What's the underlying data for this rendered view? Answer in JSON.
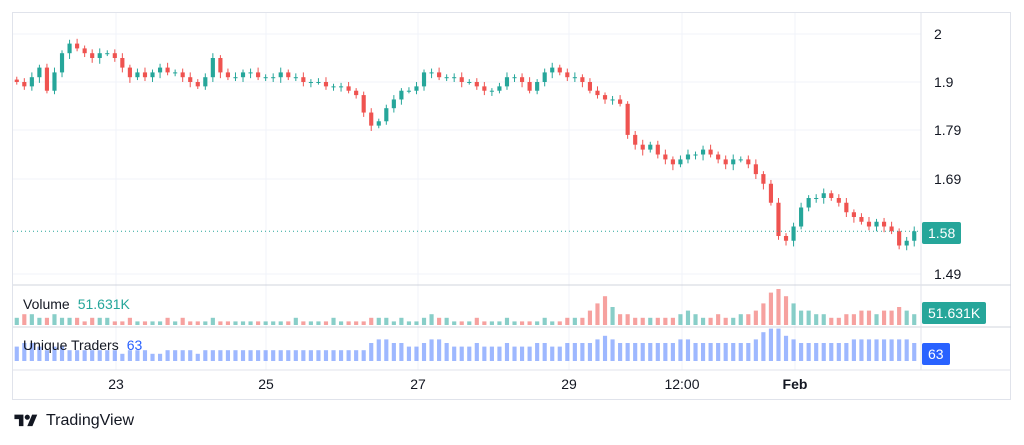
{
  "chart_data": [
    {
      "type": "candlestick",
      "title": "",
      "y_ticks": [
        "2",
        "1.9",
        "1.79",
        "1.69",
        "1.49"
      ],
      "x_ticks": [
        "23",
        "25",
        "27",
        "29",
        "12:00",
        "Feb"
      ],
      "last_price": "1.58",
      "ylim": [
        1.45,
        2.02
      ],
      "colors": {
        "up": "#26a69a",
        "down": "#ef5350",
        "last": "#26a69a"
      },
      "series_close": [
        1.9,
        1.89,
        1.91,
        1.93,
        1.88,
        1.92,
        1.96,
        1.98,
        1.97,
        1.96,
        1.95,
        1.96,
        1.96,
        1.95,
        1.93,
        1.91,
        1.92,
        1.91,
        1.92,
        1.93,
        1.92,
        1.92,
        1.91,
        1.9,
        1.89,
        1.91,
        1.95,
        1.92,
        1.91,
        1.91,
        1.92,
        1.92,
        1.91,
        1.91,
        1.91,
        1.92,
        1.91,
        1.91,
        1.9,
        1.9,
        1.9,
        1.89,
        1.89,
        1.89,
        1.88,
        1.87,
        1.83,
        1.8,
        1.81,
        1.84,
        1.86,
        1.88,
        1.88,
        1.89,
        1.92,
        1.92,
        1.91,
        1.91,
        1.91,
        1.9,
        1.9,
        1.89,
        1.88,
        1.88,
        1.89,
        1.91,
        1.91,
        1.9,
        1.88,
        1.9,
        1.92,
        1.93,
        1.92,
        1.91,
        1.91,
        1.9,
        1.88,
        1.87,
        1.86,
        1.86,
        1.85,
        1.78,
        1.76,
        1.75,
        1.76,
        1.74,
        1.73,
        1.72,
        1.73,
        1.74,
        1.74,
        1.75,
        1.74,
        1.73,
        1.72,
        1.73,
        1.73,
        1.72,
        1.7,
        1.68,
        1.64,
        1.57,
        1.56,
        1.59,
        1.63,
        1.65,
        1.65,
        1.66,
        1.65,
        1.64,
        1.62,
        1.61,
        1.6,
        1.59,
        1.6,
        1.59,
        1.58,
        1.55,
        1.56,
        1.58
      ],
      "volume_label": "Volume",
      "volume_value": "51.631K",
      "volume_color": "#26a69a",
      "volume": [
        2,
        3,
        3,
        2,
        2,
        3,
        2,
        2,
        2,
        1,
        2,
        2,
        2,
        1,
        1,
        2,
        1,
        1,
        1,
        1,
        2,
        1,
        2,
        1,
        1,
        1,
        2,
        1,
        1,
        1,
        1,
        1,
        1,
        1,
        1,
        1,
        1,
        2,
        1,
        1,
        1,
        1,
        2,
        1,
        1,
        1,
        1,
        2,
        2,
        2,
        1,
        2,
        1,
        1,
        2,
        3,
        2,
        2,
        1,
        1,
        1,
        2,
        1,
        1,
        1,
        2,
        1,
        1,
        1,
        1,
        2,
        1,
        1,
        2,
        2,
        2,
        4,
        6,
        8,
        5,
        3,
        3,
        2,
        2,
        2,
        2,
        2,
        2,
        3,
        4,
        3,
        2,
        2,
        3,
        2,
        2,
        3,
        3,
        4,
        6,
        9,
        10,
        8,
        6,
        4,
        4,
        3,
        3,
        2,
        2,
        3,
        3,
        4,
        4,
        3,
        4,
        4,
        5,
        4,
        3
      ],
      "traders_label": "Unique Traders",
      "traders_value": "63",
      "traders_color": "#2962ff",
      "traders": [
        4,
        5,
        5,
        4,
        3,
        4,
        4,
        3,
        3,
        3,
        3,
        3,
        3,
        3,
        2,
        3,
        3,
        3,
        2,
        2,
        3,
        3,
        3,
        3,
        2,
        3,
        3,
        3,
        3,
        3,
        3,
        3,
        3,
        3,
        3,
        3,
        3,
        3,
        3,
        3,
        3,
        3,
        3,
        3,
        3,
        3,
        3,
        5,
        6,
        6,
        5,
        5,
        4,
        4,
        5,
        6,
        6,
        5,
        4,
        4,
        4,
        5,
        4,
        4,
        4,
        5,
        4,
        4,
        4,
        5,
        5,
        4,
        4,
        5,
        5,
        5,
        5,
        6,
        7,
        6,
        5,
        5,
        5,
        5,
        5,
        5,
        5,
        5,
        6,
        6,
        5,
        5,
        5,
        5,
        5,
        5,
        5,
        5,
        6,
        8,
        9,
        9,
        7,
        6,
        5,
        5,
        5,
        5,
        5,
        5,
        5,
        6,
        6,
        6,
        6,
        6,
        6,
        6,
        6,
        5
      ]
    }
  ],
  "brand": "TradingView"
}
